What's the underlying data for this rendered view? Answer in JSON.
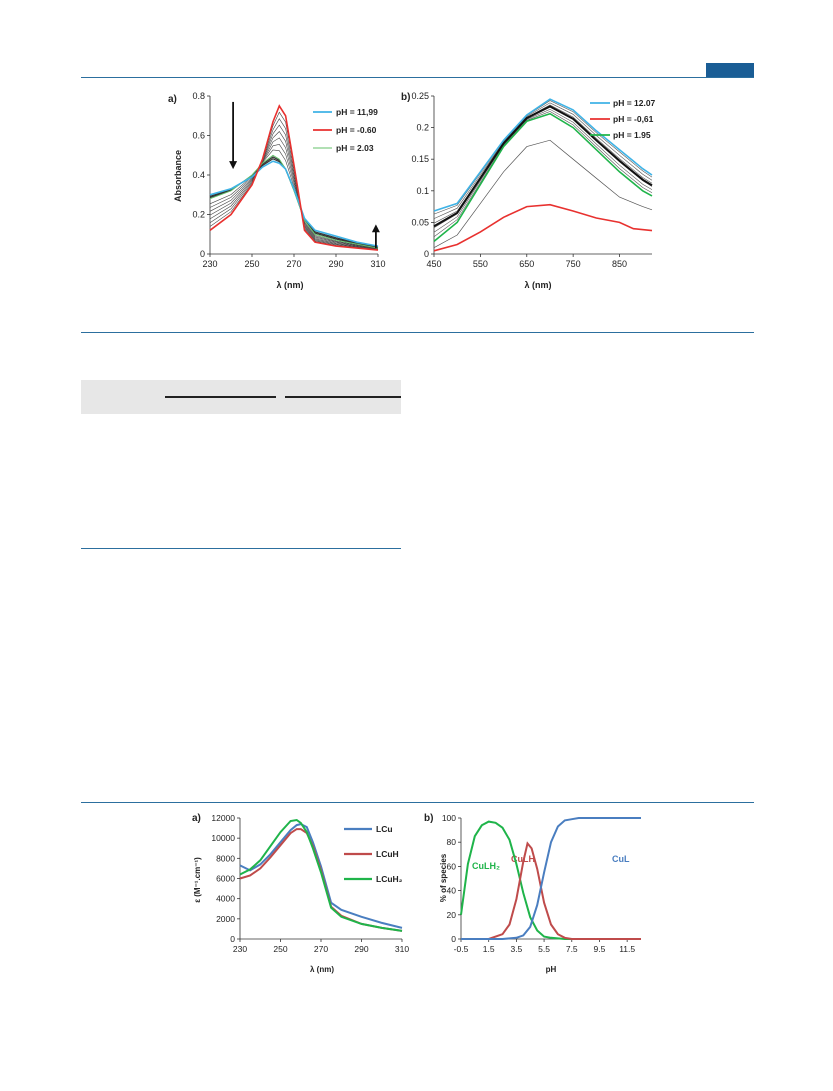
{
  "figure_top": {
    "panel_a": {
      "letter": "a)",
      "xlabel": "λ (nm)",
      "ylabel": "Absorbance",
      "xticks": [
        "230",
        "250",
        "270",
        "290",
        "310"
      ],
      "yticks": [
        "0",
        "0.2",
        "0.4",
        "0.6",
        "0.8"
      ],
      "legend": [
        "pH = 11,99",
        "pH = -0.60",
        "pH = 2.03"
      ],
      "colors": {
        "blue": "#3fb3e6",
        "red": "#e8312f",
        "green": "#63c06a",
        "gray": "#555555"
      }
    },
    "panel_b": {
      "letter": "b)",
      "xlabel": "λ (nm)",
      "xticks": [
        "450",
        "550",
        "650",
        "750",
        "850"
      ],
      "yticks": [
        "0",
        "0.05",
        "0.1",
        "0.15",
        "0.2",
        "0.25"
      ],
      "legend": [
        "pH = 12.07",
        "pH = -0,61",
        "pH = 1.95"
      ]
    }
  },
  "figure_bottom": {
    "panel_a": {
      "letter": "a)",
      "xlabel": "λ (nm)",
      "ylabel": "ε (M⁻¹.cm⁻¹)",
      "xticks": [
        "230",
        "250",
        "270",
        "290",
        "310"
      ],
      "yticks": [
        "0",
        "2000",
        "4000",
        "6000",
        "8000",
        "10000",
        "12000"
      ],
      "legend": [
        "LCu",
        "LCuH",
        "LCuH₂"
      ],
      "colors": {
        "LCu": "#4a7ec0",
        "LCuH": "#bf4b4b",
        "LCuH2": "#1fb44a"
      }
    },
    "panel_b": {
      "letter": "b)",
      "xlabel": "pH",
      "ylabel": "% of species",
      "xticks": [
        "-0.5",
        "1.5",
        "3.5",
        "5.5",
        "7.5",
        "9.5",
        "11.5"
      ],
      "yticks": [
        "0",
        "20",
        "40",
        "60",
        "80",
        "100"
      ],
      "labels": {
        "CuLH2": "CuLH₂",
        "CuLH": "CuLH",
        "CuL": "CuL"
      }
    }
  },
  "chart_data": [
    {
      "type": "line",
      "xlabel": "λ (nm)",
      "ylabel": "Absorbance",
      "xlim": [
        230,
        310
      ],
      "ylim": [
        0,
        0.8
      ],
      "series": [
        {
          "name": "pH = -0.60",
          "x": [
            230,
            240,
            250,
            255,
            260,
            263,
            266,
            270,
            275,
            280,
            290,
            300,
            310
          ],
          "y": [
            0.12,
            0.2,
            0.35,
            0.48,
            0.67,
            0.75,
            0.7,
            0.45,
            0.12,
            0.06,
            0.04,
            0.03,
            0.02
          ]
        },
        {
          "name": "pH = 11,99",
          "x": [
            230,
            240,
            250,
            255,
            260,
            263,
            266,
            270,
            275,
            280,
            290,
            300,
            310
          ],
          "y": [
            0.3,
            0.33,
            0.39,
            0.44,
            0.47,
            0.46,
            0.43,
            0.33,
            0.18,
            0.12,
            0.09,
            0.06,
            0.04
          ]
        },
        {
          "name": "pH = 2.03",
          "x": [
            230,
            240,
            250,
            255,
            260,
            263,
            266,
            270,
            275,
            280,
            290,
            300,
            310
          ],
          "y": [
            0.28,
            0.32,
            0.4,
            0.46,
            0.5,
            0.48,
            0.43,
            0.32,
            0.17,
            0.1,
            0.07,
            0.05,
            0.03
          ]
        }
      ]
    },
    {
      "type": "line",
      "xlabel": "λ (nm)",
      "xlim": [
        450,
        920
      ],
      "ylim": [
        0,
        0.25
      ],
      "series": [
        {
          "name": "pH = 12.07",
          "x": [
            450,
            500,
            550,
            600,
            650,
            700,
            750,
            800,
            850,
            900,
            920
          ],
          "y": [
            0.068,
            0.08,
            0.13,
            0.18,
            0.22,
            0.245,
            0.228,
            0.195,
            0.165,
            0.135,
            0.125
          ]
        },
        {
          "name": "pH = -0,61",
          "x": [
            450,
            500,
            550,
            600,
            650,
            700,
            750,
            800,
            850,
            880,
            920
          ],
          "y": [
            0.005,
            0.015,
            0.035,
            0.058,
            0.075,
            0.078,
            0.068,
            0.057,
            0.05,
            0.04,
            0.037
          ]
        },
        {
          "name": "pH = 1.95",
          "x": [
            450,
            500,
            550,
            600,
            650,
            700,
            750,
            800,
            850,
            900,
            920
          ],
          "y": [
            0.02,
            0.05,
            0.11,
            0.17,
            0.21,
            0.222,
            0.2,
            0.165,
            0.13,
            0.1,
            0.092
          ]
        }
      ]
    },
    {
      "type": "line",
      "xlabel": "λ (nm)",
      "ylabel": "ε (M⁻¹.cm⁻¹)",
      "xlim": [
        230,
        310
      ],
      "ylim": [
        0,
        12000
      ],
      "series": [
        {
          "name": "LCu",
          "x": [
            230,
            235,
            240,
            245,
            250,
            255,
            258,
            260,
            263,
            266,
            270,
            275,
            280,
            290,
            300,
            310
          ],
          "y": [
            7300,
            6800,
            7400,
            8400,
            9600,
            10800,
            11300,
            11400,
            11100,
            9600,
            7200,
            3600,
            2900,
            2200,
            1600,
            1100
          ]
        },
        {
          "name": "LCuH",
          "x": [
            230,
            235,
            240,
            245,
            250,
            255,
            258,
            260,
            263,
            266,
            270,
            275,
            280,
            290,
            300,
            310
          ],
          "y": [
            6000,
            6300,
            7000,
            8100,
            9300,
            10500,
            10900,
            10900,
            10500,
            9200,
            6800,
            3200,
            2300,
            1500,
            1100,
            800
          ]
        },
        {
          "name": "LCuH₂",
          "x": [
            230,
            235,
            240,
            245,
            250,
            255,
            258,
            260,
            263,
            266,
            270,
            275,
            280,
            290,
            300,
            310
          ],
          "y": [
            6400,
            6900,
            7800,
            9200,
            10600,
            11700,
            11800,
            11500,
            10600,
            9000,
            6600,
            3100,
            2200,
            1500,
            1100,
            800
          ]
        }
      ]
    },
    {
      "type": "line",
      "xlabel": "pH",
      "ylabel": "% of species",
      "xlim": [
        -0.5,
        12.5
      ],
      "ylim": [
        0,
        100
      ],
      "series": [
        {
          "name": "CuLH₂",
          "x": [
            -0.5,
            0,
            0.5,
            1,
            1.5,
            2,
            2.5,
            3,
            3.5,
            4,
            4.5,
            5,
            5.5,
            6,
            7,
            12.5
          ],
          "y": [
            20,
            62,
            85,
            94,
            97,
            96,
            92,
            82,
            62,
            38,
            18,
            7,
            2,
            1,
            0,
            0
          ]
        },
        {
          "name": "CuLH",
          "x": [
            -0.5,
            1.5,
            2.5,
            3,
            3.5,
            4,
            4.3,
            4.6,
            5,
            5.5,
            6,
            6.5,
            7,
            7.5,
            12.5
          ],
          "y": [
            0,
            0,
            4,
            12,
            33,
            64,
            79,
            75,
            58,
            30,
            12,
            4,
            1,
            0,
            0
          ]
        },
        {
          "name": "CuL",
          "x": [
            -0.5,
            2.5,
            3.5,
            4,
            4.5,
            5,
            5.5,
            6,
            6.5,
            7,
            7.5,
            8,
            12.5
          ],
          "y": [
            0,
            0,
            1,
            3,
            10,
            28,
            55,
            80,
            93,
            98,
            99,
            100,
            100
          ]
        }
      ]
    }
  ]
}
